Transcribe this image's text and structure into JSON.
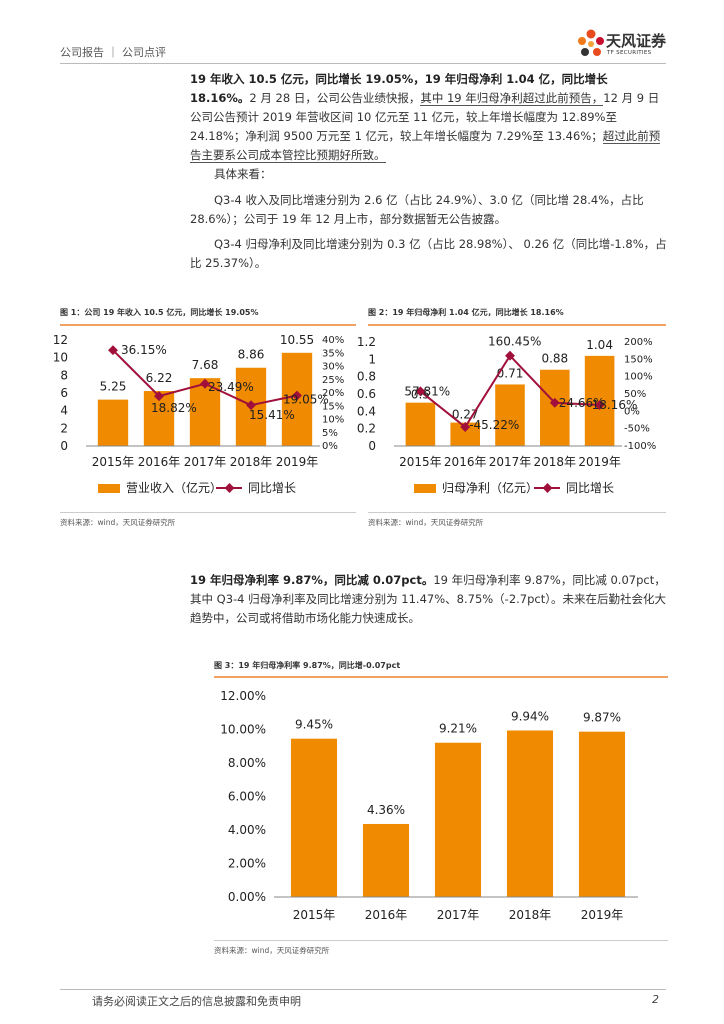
{
  "header": {
    "section": "公司报告 ｜ 公司点评",
    "logo_name": "天风证券",
    "logo_sub": "TF SECURITIES"
  },
  "para1": {
    "bold": "19 年收入 10.5 亿元，同比增长 19.05%，19 年归母净利 1.04 亿，同比增长 18.16%。",
    "text1": "2 月 28 日，公司公告业绩快报，",
    "underline1": "其中 19 年归母净利超过此前预告，",
    "text2": "12 月 9 日公司公告预计 2019 年营收区间 10 亿元至 11 亿元，较上年增长幅度为 12.89%至 24.18%；净利润 9500 万元至 1 亿元，较上年增长幅度为 7.29%至 13.46%；",
    "underline2": "超过此前预告主要系公司成本管控比预期好所致。"
  },
  "para2": {
    "text": "具体来看："
  },
  "para3": {
    "text": "Q3-4 收入及同比增速分别为 2.6 亿（占比 24.9%）、3.0 亿（同比增 28.4%，占比 28.6%）；公司于 19 年 12 月上市，部分数据暂无公告披露。"
  },
  "para4": {
    "text": "Q3-4 归母净利及同比增速分别为 0.3 亿（占比 28.98%）、 0.26 亿（同比增-1.8%，占比 25.37%）。"
  },
  "para5": {
    "bold": "19 年归母净利率 9.87%，同比减 0.07pct。",
    "text": "19 年归母净利率 9.87%，同比减 0.07pct，其中 Q3-4 归母净利率及同比增速分别为 11.47%、8.75%（-2.7pct）。未来在后勤社会化大趋势中，公司或将借助市场化能力快速成长。"
  },
  "fig1": {
    "title": "图 1：公司 19 年收入 10.5 亿元，同比增长 19.05%",
    "source": "资料来源：wind，天风证券研究所"
  },
  "fig2": {
    "title": "图 2：19 年归母净利 1.04 亿元，同比增长 18.16%",
    "source": "资料来源：wind，天风证券研究所"
  },
  "fig3": {
    "title": "图 3：19 年归母净利率 9.87%，同比增-0.07pct",
    "source": "资料来源：wind，天风证券研究所"
  },
  "footer": {
    "disclaimer": "请务必阅读正文之后的信息披露和免责申明",
    "page": "2"
  },
  "colors": {
    "bar": "#f08a00",
    "line": "#a0103a"
  },
  "chart_data": [
    {
      "type": "bar+line",
      "categories": [
        "2015年",
        "2016年",
        "2017年",
        "2018年",
        "2019年"
      ],
      "series": [
        {
          "name": "营业收入（亿元）",
          "type": "bar",
          "values": [
            5.25,
            6.22,
            7.68,
            8.86,
            10.55
          ],
          "labels": [
            "5.25",
            "6.22",
            "7.68",
            "8.86",
            "10.55"
          ]
        },
        {
          "name": "同比增长",
          "type": "line",
          "values": [
            36.15,
            18.82,
            23.49,
            15.41,
            19.05
          ],
          "labels": [
            "36.15%",
            "18.82%",
            "23.49%",
            "15.41%",
            "19.05%"
          ]
        }
      ],
      "ylim_left": [
        0,
        12
      ],
      "yticks_left": [
        "0",
        "2",
        "4",
        "6",
        "8",
        "10",
        "12"
      ],
      "ylim_right": [
        0,
        40
      ],
      "yticks_right": [
        "0%",
        "5%",
        "10%",
        "15%",
        "20%",
        "25%",
        "30%",
        "35%",
        "40%"
      ],
      "legend": [
        "营业收入（亿元）",
        "同比增长"
      ]
    },
    {
      "type": "bar+line",
      "categories": [
        "2015年",
        "2016年",
        "2017年",
        "2018年",
        "2019年"
      ],
      "series": [
        {
          "name": "归母净利（亿元）",
          "type": "bar",
          "values": [
            0.5,
            0.27,
            0.71,
            0.88,
            1.04
          ],
          "labels": [
            "0.5",
            "0.27",
            "0.71",
            "0.88",
            "1.04"
          ]
        },
        {
          "name": "同比增长",
          "type": "line",
          "values": [
            57.81,
            -45.22,
            160.45,
            24.66,
            18.16
          ],
          "labels": [
            "57.81%",
            "-45.22%",
            "160.45%",
            "24.66%",
            "18.16%"
          ]
        }
      ],
      "ylim_left": [
        0,
        1.2
      ],
      "yticks_left": [
        "0",
        "0.2",
        "0.4",
        "0.6",
        "0.8",
        "1",
        "1.2"
      ],
      "ylim_right": [
        -100,
        200
      ],
      "yticks_right": [
        "-100%",
        "-50%",
        "0%",
        "50%",
        "100%",
        "150%",
        "200%"
      ],
      "legend": [
        "归母净利（亿元）",
        "同比增长"
      ]
    },
    {
      "type": "bar",
      "categories": [
        "2015年",
        "2016年",
        "2017年",
        "2018年",
        "2019年"
      ],
      "values": [
        9.45,
        4.36,
        9.21,
        9.94,
        9.87
      ],
      "labels": [
        "9.45%",
        "4.36%",
        "9.21%",
        "9.94%",
        "9.87%"
      ],
      "ylim": [
        0,
        12
      ],
      "yticks": [
        "0.00%",
        "2.00%",
        "4.00%",
        "6.00%",
        "8.00%",
        "10.00%",
        "12.00%"
      ]
    }
  ]
}
